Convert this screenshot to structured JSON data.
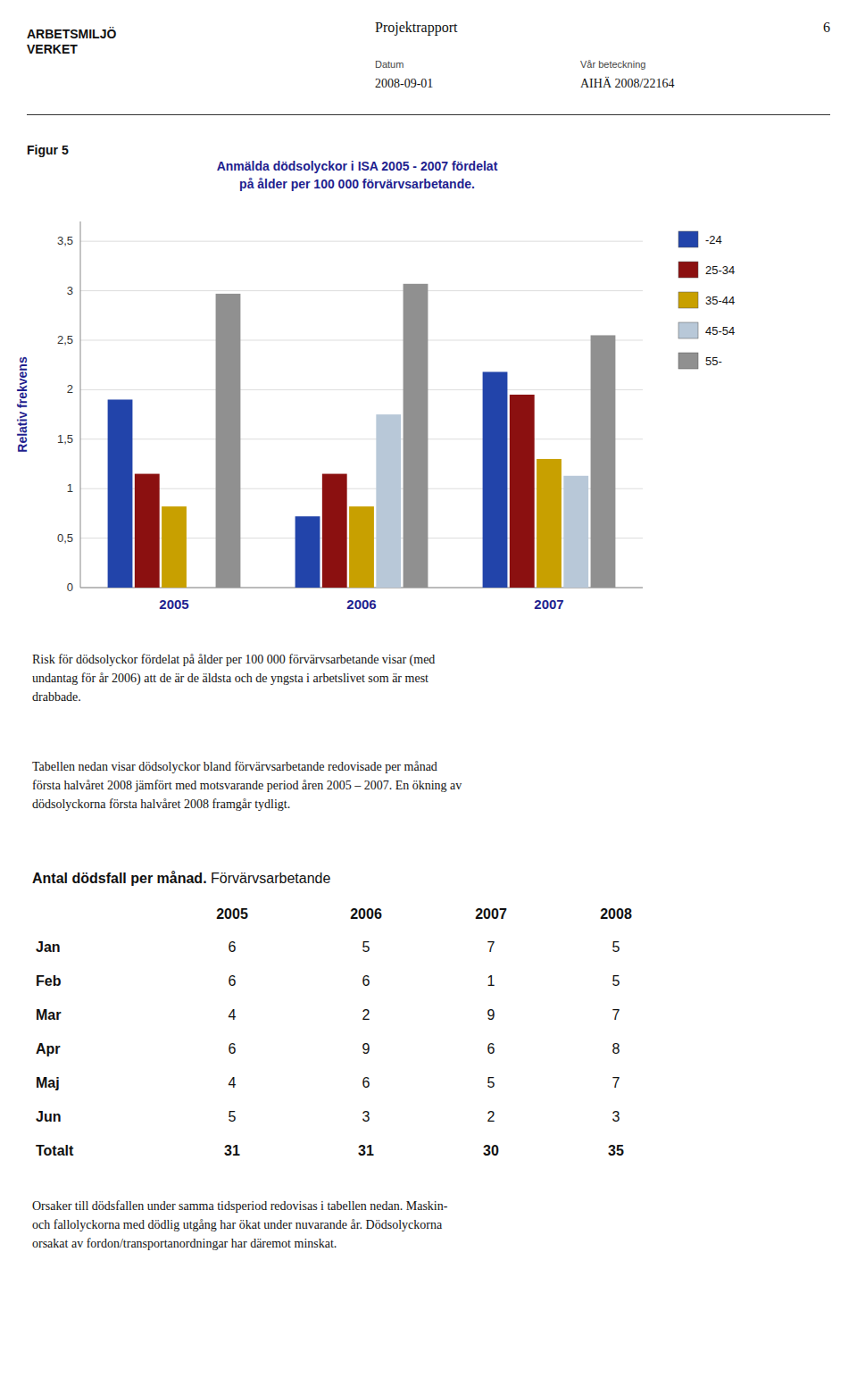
{
  "page_number": "6",
  "logo": "ARBETSMILJÖ\nVERKET",
  "header": {
    "title": "Projektrapport",
    "datum_label": "Datum",
    "datum_value": "2008-09-01",
    "ref_label": "Vår beteckning",
    "ref_value": "AIHÄ 2008/22164"
  },
  "figure_label": "Figur 5",
  "chart_data": {
    "type": "bar",
    "title": "Anmälda dödsolyckor i ISA 2005 - 2007 fördelat",
    "subtitle": "på ålder per 100 000 förvärvsarbetande.",
    "y_label": "Relativ frekvens",
    "categories": [
      "2005",
      "2006",
      "2007"
    ],
    "series": [
      {
        "name": "-24",
        "color": "#2244AA",
        "values": [
          1.9,
          0.72,
          2.18
        ]
      },
      {
        "name": "25-34",
        "color": "#8B1010",
        "values": [
          1.15,
          1.15,
          1.95
        ]
      },
      {
        "name": "35-44",
        "color": "#C8A000",
        "values": [
          0.82,
          0.82,
          1.3
        ]
      },
      {
        "name": "45-54",
        "color": "#B8C8D8",
        "values": [
          0.0,
          1.75,
          1.13
        ]
      },
      {
        "name": "55-",
        "color": "#909090",
        "values": [
          2.97,
          3.07,
          2.55
        ]
      }
    ],
    "ylim": [
      0,
      3.7
    ],
    "yticks": [
      0,
      {
        "value": 0.5,
        "label": "0,5"
      },
      1,
      {
        "value": 1.5,
        "label": "1,5"
      },
      2,
      {
        "value": 2.5,
        "label": "2,5"
      },
      3,
      {
        "value": 3.5,
        "label": "3,5"
      }
    ],
    "grid": true,
    "legend": "right"
  },
  "paragraphs": [
    "Risk för dödsolyckor fördelat på ålder per 100 000 förvärvsarbetande visar (med\nundantag för år 2006) att de är de äldsta och de yngsta i arbetslivet som är mest\ndrabbade.",
    "Tabellen nedan visar dödsolyckor bland förvärvsarbetande redovisade per månad\nförsta halvåret 2008 jämfört med motsvarande period åren 2005 – 2007. En ökning av\ndödsolyckorna första halvåret 2008 framgår tydligt.",
    "Orsaker till dödsfallen under samma tidsperiod redovisas i tabellen nedan. Maskin-\noch fallolyckorna med dödlig utgång har ökat under nuvarande år. Dödsolyckorna\norsakat av fordon/transportanordningar har däremot minskat."
  ],
  "table": {
    "title_bold": "Antal dödsfall per månad.",
    "title_normal": " Förvärvsarbetande",
    "years": [
      "2005",
      "2006",
      "2007",
      "2008"
    ],
    "rows": [
      {
        "month": "Jan",
        "bold": false,
        "values": [
          6,
          5,
          7,
          5
        ]
      },
      {
        "month": "Feb",
        "bold": false,
        "values": [
          6,
          6,
          1,
          5
        ]
      },
      {
        "month": "Mar",
        "bold": false,
        "values": [
          4,
          2,
          9,
          7
        ]
      },
      {
        "month": "Apr",
        "bold": false,
        "values": [
          6,
          9,
          6,
          8
        ]
      },
      {
        "month": "Maj",
        "bold": false,
        "values": [
          4,
          6,
          5,
          7
        ]
      },
      {
        "month": "Jun",
        "bold": false,
        "values": [
          5,
          3,
          2,
          3
        ]
      },
      {
        "month": "Totalt",
        "bold": true,
        "values": [
          31,
          31,
          30,
          35
        ]
      }
    ]
  }
}
